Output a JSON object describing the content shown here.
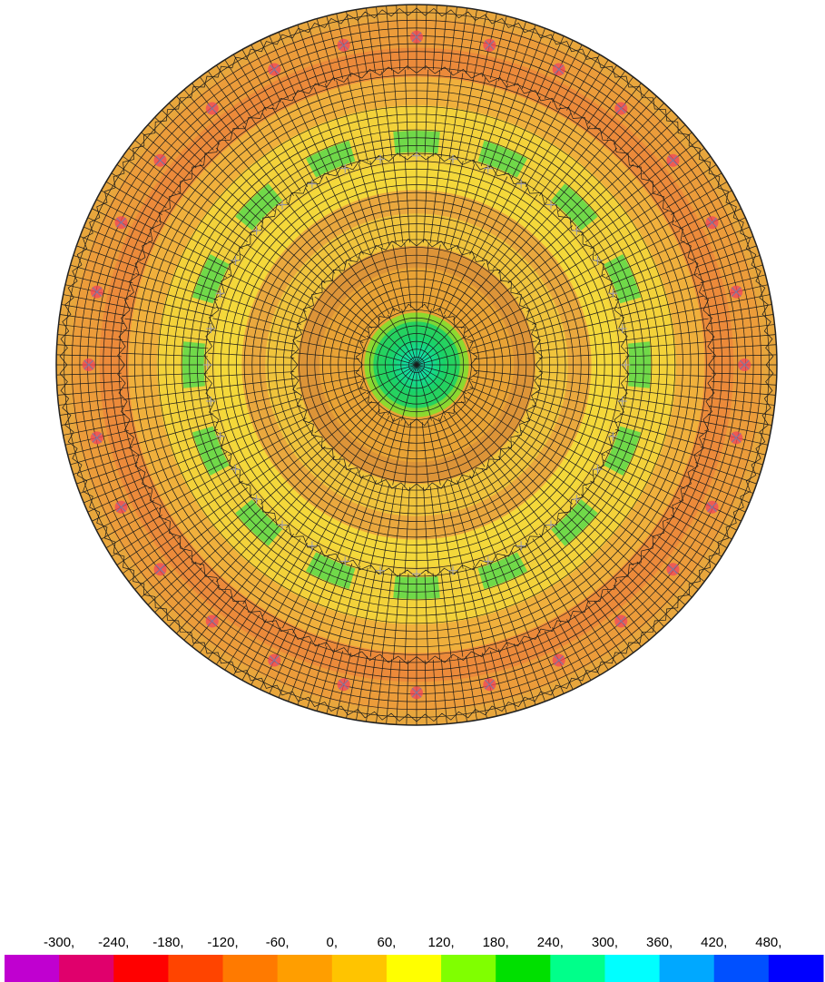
{
  "contour_plot": {
    "rings": [
      {
        "r_frac": 0.0,
        "color": "#11e0b6"
      },
      {
        "r_frac": 0.08,
        "color": "#19d265"
      },
      {
        "r_frac": 0.12,
        "color": "#8fd92e"
      },
      {
        "r_frac": 0.145,
        "color": "#e9a335"
      },
      {
        "r_frac": 0.27,
        "color": "#dd9438"
      },
      {
        "r_frac": 0.33,
        "color": "#f0c43c"
      },
      {
        "r_frac": 0.42,
        "color": "#eaa83e"
      },
      {
        "r_frac": 0.485,
        "color": "#f4d83a"
      },
      {
        "r_frac": 0.56,
        "color": "#f2cf3c"
      },
      {
        "r_frac": 0.64,
        "color": "#f3d23a"
      },
      {
        "r_frac": 0.72,
        "color": "#f0b03c"
      },
      {
        "r_frac": 0.8,
        "color": "#ec8a3a"
      },
      {
        "r_frac": 0.88,
        "color": "#ec9c3a"
      },
      {
        "r_frac": 0.96,
        "color": "#e8a63c"
      }
    ],
    "green_patch_color": "#62d94a",
    "support_marker_color": "#f0465c"
  },
  "legend": {
    "labels": [
      "-300,",
      "-240,",
      "-180,",
      "-120,",
      "-60,",
      "0,",
      "60,",
      "120,",
      "180,",
      "240,",
      "300,",
      "360,",
      "420,",
      "480,"
    ],
    "colors": [
      "#c000d0",
      "#e0006c",
      "#ff0000",
      "#ff4400",
      "#ff7a00",
      "#ff9e00",
      "#ffc400",
      "#ffff00",
      "#80ff00",
      "#00e000",
      "#00ff8a",
      "#00ffff",
      "#00a8ff",
      "#0050ff",
      "#0000ff"
    ]
  }
}
